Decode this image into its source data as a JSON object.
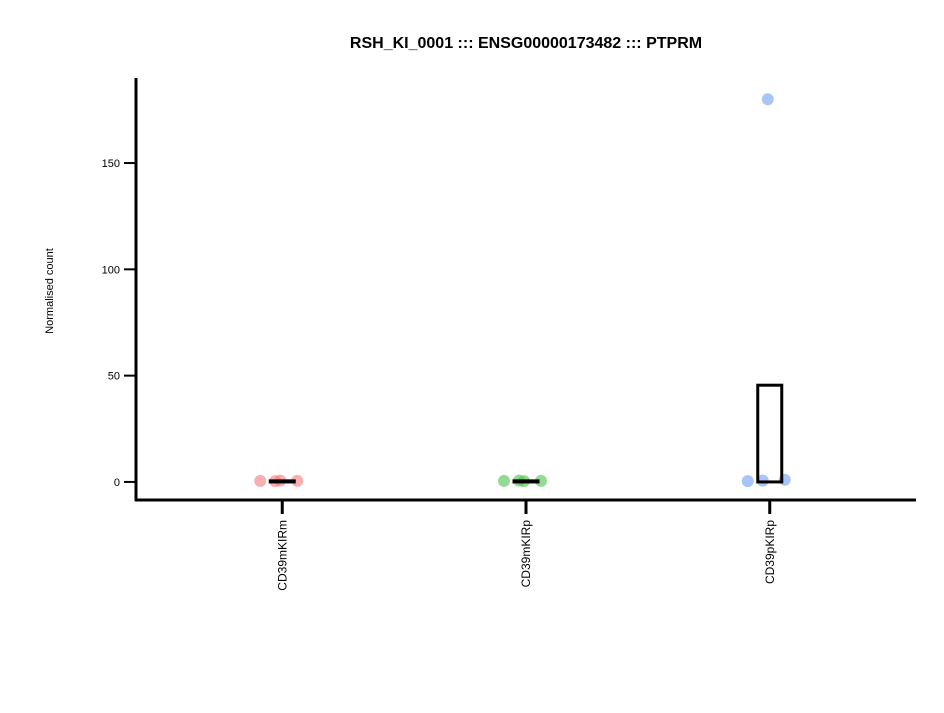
{
  "chart_data": {
    "type": "strip",
    "title": "RSH_KI_0001 ::: ENSG00000173482 ::: PTPRM",
    "y_label": "Normalised count",
    "categories": [
      "CD39mKIRm",
      "CD39mKIRp",
      "CD39pKIRp"
    ],
    "colors": [
      "#f27c7c",
      "#4cbf4c",
      "#6f9cf0"
    ],
    "points": [
      [
        0.5,
        0.4,
        0.6,
        0.5
      ],
      [
        0.5,
        0.6,
        0.4,
        0.5
      ],
      [
        0.4,
        0.6,
        180,
        1
      ]
    ],
    "bar_values": [
      0.5,
      0.5,
      45.5
    ],
    "bar_color": "#000000",
    "ylim": [
      -8.5,
      190
    ],
    "yticks": [
      0,
      50,
      100,
      150
    ]
  }
}
